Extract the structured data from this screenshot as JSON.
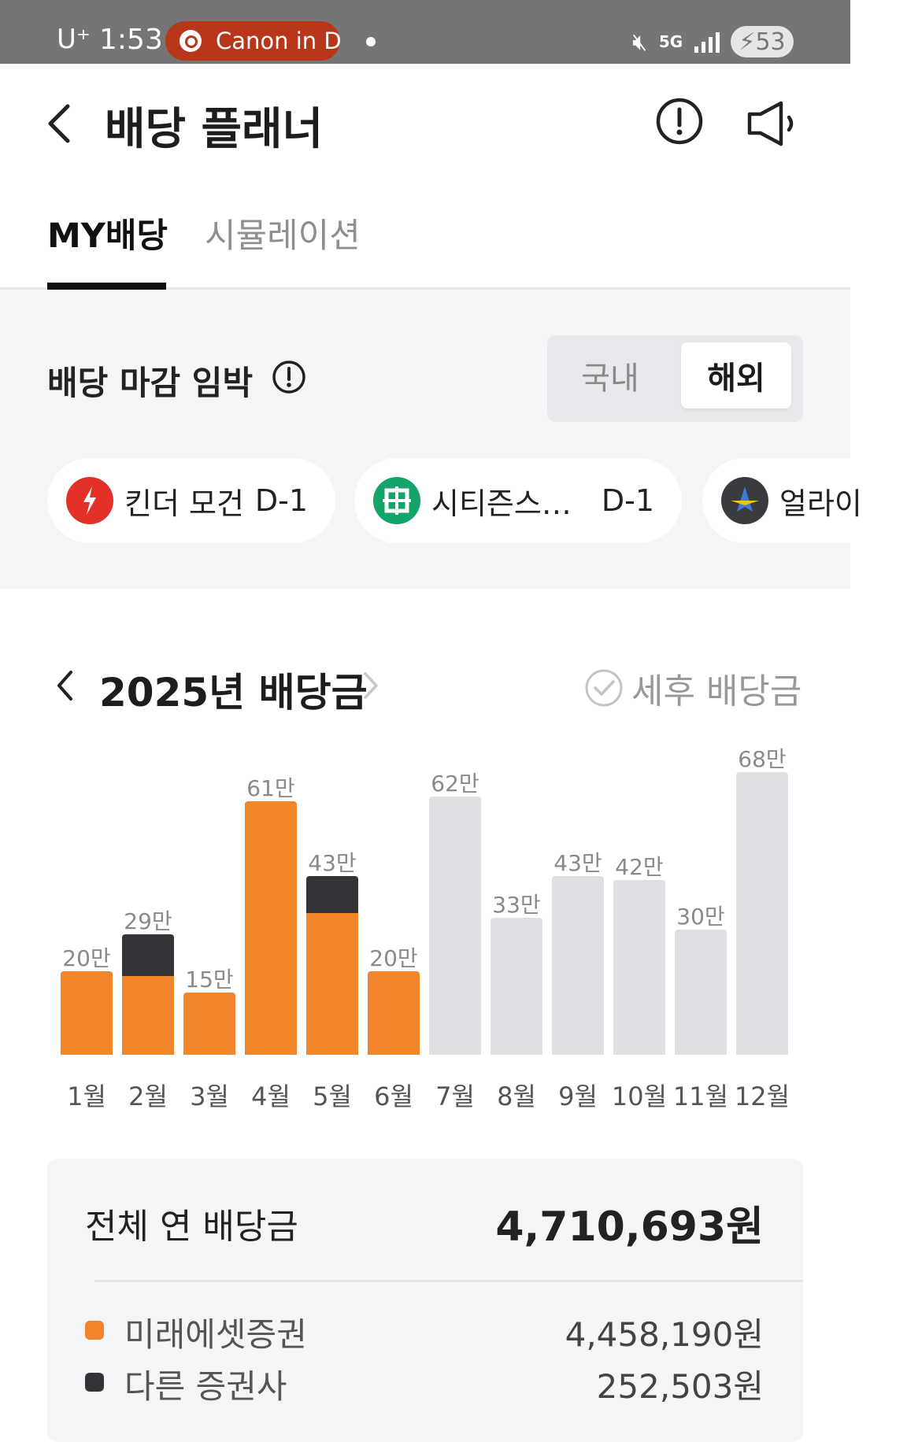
{
  "status_bar": {
    "carrier": "U⁺",
    "time": "1:53",
    "media_pill": "Canon in D",
    "network": "5G",
    "battery": "53"
  },
  "header": {
    "title": "배당 플래너"
  },
  "tabs": [
    {
      "label": "MY배당",
      "active": true
    },
    {
      "label": "시뮬레이션",
      "active": false
    }
  ],
  "deadline": {
    "title": "배당 마감 임박",
    "segment": {
      "domestic": "국내",
      "overseas": "해외",
      "selected": "overseas"
    },
    "chips": [
      {
        "name": "킨더 모건",
        "dday": "D-1",
        "logo_color": "#e33127"
      },
      {
        "name": "시티즌스…",
        "dday": "D-1",
        "logo_color": "#14a46a"
      },
      {
        "name": "얼라이",
        "dday": "",
        "logo_color": "#3a3b3f"
      }
    ]
  },
  "chart_section": {
    "year_title": "2025년 배당금",
    "after_tax_label": "세후 배당금"
  },
  "chart_data": {
    "type": "bar",
    "categories": [
      "1월",
      "2월",
      "3월",
      "4월",
      "5월",
      "6월",
      "7월",
      "8월",
      "9월",
      "10월",
      "11월",
      "12월"
    ],
    "labels": [
      "20만",
      "29만",
      "15만",
      "61만",
      "43만",
      "20만",
      "62만",
      "33만",
      "43만",
      "42만",
      "30만",
      "68만"
    ],
    "series": [
      {
        "name": "미래에셋증권",
        "color": "#f0852b",
        "values": [
          20,
          19,
          15,
          61,
          34,
          20,
          0,
          0,
          0,
          0,
          0,
          0
        ]
      },
      {
        "name": "다른 증권사",
        "color": "#333438",
        "values": [
          0,
          10,
          0,
          0,
          9,
          0,
          0,
          0,
          0,
          0,
          0,
          0
        ]
      },
      {
        "color": "#dfe0e3",
        "values": [
          0,
          0,
          0,
          0,
          0,
          0,
          62,
          33,
          43,
          42,
          30,
          68
        ]
      }
    ],
    "stacked": true,
    "ylim": [
      0,
      70
    ]
  },
  "summary": {
    "total_label": "전체 연 배당금",
    "total_value": "4,710,693원",
    "legend": [
      {
        "name": "미래에셋증권",
        "value": "4,458,190원",
        "color": "#f0852b"
      },
      {
        "name": "다른 증권사",
        "value": "252,503원",
        "color": "#333438"
      }
    ]
  },
  "colors": {
    "accent": "#f0852b",
    "dark": "#333438",
    "future": "#dfe0e3",
    "section_bg": "#f4f5f7"
  }
}
